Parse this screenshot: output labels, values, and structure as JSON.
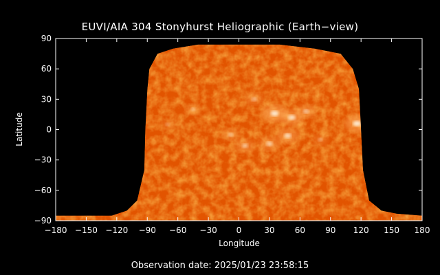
{
  "chart_data": {
    "type": "heatmap",
    "title": "EUVI/AIA 304 Stonyhurst Heliographic (Earth−view)",
    "xlabel": "Longitude",
    "ylabel": "Latitude",
    "xlim": [
      -180,
      180
    ],
    "ylim": [
      -90,
      90
    ],
    "x_ticks": [
      -180,
      -150,
      -120,
      -90,
      -60,
      -30,
      0,
      30,
      60,
      90,
      120,
      150,
      180
    ],
    "y_ticks": [
      -90,
      -60,
      -30,
      0,
      30,
      60,
      90
    ],
    "x_tick_labels": [
      "−180",
      "−150",
      "−120",
      "−90",
      "−60",
      "−30",
      "0",
      "30",
      "60",
      "90",
      "120",
      "150",
      "180"
    ],
    "y_tick_labels": [
      "−90",
      "−60",
      "−30",
      "0",
      "30",
      "60",
      "90"
    ],
    "grid": false,
    "colors": {
      "background": "#000000",
      "axes": "#ffffff",
      "map_base": "#e85a00",
      "map_bright": "#ffe8c0"
    },
    "coverage_boundary": {
      "left": [
        [
          -180,
          -85
        ],
        [
          -125,
          -85
        ],
        [
          -110,
          -80
        ],
        [
          -100,
          -70
        ],
        [
          -93,
          -40
        ],
        [
          -92,
          0
        ],
        [
          -90,
          40
        ],
        [
          -88,
          60
        ],
        [
          -80,
          75
        ],
        [
          -65,
          80
        ],
        [
          -40,
          84
        ]
      ],
      "right": [
        [
          40,
          84
        ],
        [
          75,
          80
        ],
        [
          100,
          75
        ],
        [
          112,
          60
        ],
        [
          118,
          40
        ],
        [
          120,
          0
        ],
        [
          122,
          -40
        ],
        [
          128,
          -70
        ],
        [
          140,
          -80
        ],
        [
          155,
          -83
        ],
        [
          180,
          -85
        ]
      ]
    },
    "bright_regions": [
      {
        "lon": 35,
        "lat": 16,
        "intensity": 1.0
      },
      {
        "lon": 52,
        "lat": 12,
        "intensity": 0.9
      },
      {
        "lon": 66,
        "lat": 18,
        "intensity": 0.7
      },
      {
        "lon": 116,
        "lat": 6,
        "intensity": 1.0
      },
      {
        "lon": 48,
        "lat": -6,
        "intensity": 0.85
      },
      {
        "lon": 30,
        "lat": -14,
        "intensity": 0.75
      },
      {
        "lon": 6,
        "lat": -16,
        "intensity": 0.7
      },
      {
        "lon": -8,
        "lat": -5,
        "intensity": 0.6
      },
      {
        "lon": 15,
        "lat": 30,
        "intensity": 0.6
      },
      {
        "lon": -45,
        "lat": 20,
        "intensity": 0.5
      },
      {
        "lon": -70,
        "lat": 5,
        "intensity": 0.45
      },
      {
        "lon": 80,
        "lat": -10,
        "intensity": 0.5
      }
    ]
  },
  "footer": {
    "observation_date": "Observation date: 2025/01/23 23:58:15"
  }
}
